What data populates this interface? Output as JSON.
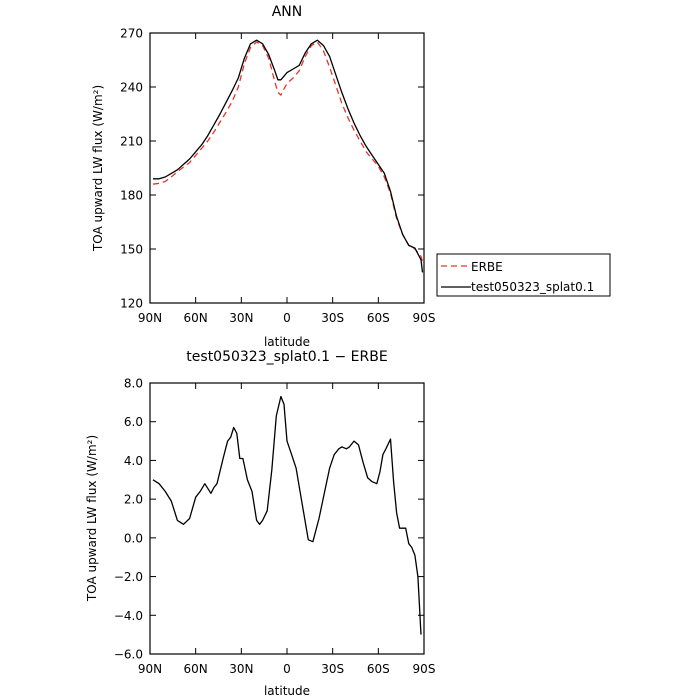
{
  "chart_data": [
    {
      "type": "line",
      "title": "ANN",
      "xlabel": "latitude",
      "ylabel": "TOA upward LW flux (W/m²)",
      "xlim": [
        -90,
        90
      ],
      "ylim": [
        120,
        270
      ],
      "x_ticks": [
        {
          "value": -90,
          "label": "90N"
        },
        {
          "value": -60,
          "label": "60N"
        },
        {
          "value": -30,
          "label": "30N"
        },
        {
          "value": 0,
          "label": "0"
        },
        {
          "value": 30,
          "label": "30S"
        },
        {
          "value": 60,
          "label": "60S"
        },
        {
          "value": 90,
          "label": "90S"
        }
      ],
      "y_ticks": [
        {
          "value": 120,
          "label": "120"
        },
        {
          "value": 150,
          "label": "150"
        },
        {
          "value": 180,
          "label": "180"
        },
        {
          "value": 210,
          "label": "210"
        },
        {
          "value": 240,
          "label": "240"
        },
        {
          "value": 270,
          "label": "270"
        }
      ],
      "legend_position": "right",
      "series": [
        {
          "name": "ERBE",
          "color": "#e8342c",
          "dash": "6,4",
          "x": [
            -88,
            -84,
            -80,
            -76,
            -72,
            -68,
            -64,
            -60,
            -56,
            -52,
            -48,
            -44,
            -40,
            -36,
            -32,
            -28,
            -24,
            -20,
            -16,
            -12,
            -8,
            -6,
            -4,
            -2,
            0,
            4,
            8,
            12,
            16,
            20,
            24,
            28,
            32,
            36,
            40,
            44,
            48,
            52,
            56,
            60,
            64,
            68,
            72,
            76,
            80,
            84,
            88,
            89
          ],
          "values": [
            186,
            186.5,
            187.5,
            190,
            193,
            195.5,
            198,
            202,
            206,
            210,
            215,
            220.5,
            226,
            232,
            240,
            253,
            262,
            265,
            263,
            256,
            243,
            237,
            235.5,
            239,
            242,
            245,
            249,
            257,
            263,
            265,
            260,
            251,
            241,
            231,
            223,
            216,
            210,
            204,
            200,
            196,
            190,
            181,
            167,
            158,
            152,
            150,
            146,
            143
          ]
        },
        {
          "name": "test050323_splat0.1",
          "color": "#000000",
          "dash": "",
          "x": [
            -88,
            -84,
            -80,
            -76,
            -72,
            -68,
            -64,
            -60,
            -56,
            -52,
            -48,
            -44,
            -40,
            -36,
            -32,
            -28,
            -24,
            -20,
            -16,
            -12,
            -8,
            -6,
            -4,
            -2,
            0,
            4,
            8,
            12,
            16,
            20,
            24,
            28,
            32,
            36,
            40,
            44,
            48,
            52,
            56,
            60,
            64,
            68,
            72,
            76,
            80,
            84,
            88,
            89
          ],
          "values": [
            189,
            189,
            190,
            192,
            194,
            197,
            200,
            204,
            208,
            213,
            219,
            225,
            231.5,
            238,
            245,
            256,
            264,
            266,
            264,
            258,
            249,
            244,
            244,
            246,
            248,
            250,
            252,
            259,
            264,
            266,
            263,
            257,
            247,
            237,
            228,
            220,
            213,
            207,
            202,
            197,
            192,
            182,
            168,
            158,
            152,
            150.5,
            144,
            137
          ]
        }
      ]
    },
    {
      "type": "line",
      "title": "test050323_splat0.1 − ERBE",
      "xlabel": "latitude",
      "ylabel": "TOA upward LW flux (W/m²)",
      "xlim": [
        -90,
        90
      ],
      "ylim": [
        -6.0,
        8.0
      ],
      "x_ticks": [
        {
          "value": -90,
          "label": "90N"
        },
        {
          "value": -60,
          "label": "60N"
        },
        {
          "value": -30,
          "label": "30N"
        },
        {
          "value": 0,
          "label": "0"
        },
        {
          "value": 30,
          "label": "30S"
        },
        {
          "value": 60,
          "label": "60S"
        },
        {
          "value": 90,
          "label": "90S"
        }
      ],
      "y_ticks": [
        {
          "value": -6.0,
          "label": "−6.0"
        },
        {
          "value": -4.0,
          "label": "−4.0"
        },
        {
          "value": -2.0,
          "label": "−2.0"
        },
        {
          "value": 0.0,
          "label": "0.0"
        },
        {
          "value": 2.0,
          "label": "2.0"
        },
        {
          "value": 4.0,
          "label": "4.0"
        },
        {
          "value": 6.0,
          "label": "6.0"
        },
        {
          "value": 8.0,
          "label": "8.0"
        }
      ],
      "series": [
        {
          "color": "#000000",
          "x": [
            -88,
            -84,
            -80,
            -76,
            -72,
            -68,
            -64,
            -60,
            -57,
            -54,
            -50,
            -48,
            -46,
            -42,
            -39,
            -37,
            -35,
            -33,
            -31,
            -29,
            -26,
            -23,
            -20,
            -18,
            -16,
            -13,
            -10,
            -7,
            -4,
            -2,
            0,
            3,
            6,
            9,
            14,
            17,
            21,
            25,
            28,
            31,
            34,
            36,
            39,
            41,
            44,
            47,
            50,
            53,
            56,
            59,
            61,
            63,
            65,
            68,
            70,
            72,
            74,
            76,
            78,
            80,
            82,
            84,
            86,
            88
          ],
          "values": [
            3.0,
            2.8,
            2.4,
            1.9,
            0.9,
            0.7,
            1.0,
            2.1,
            2.4,
            2.8,
            2.3,
            2.6,
            2.8,
            4.1,
            5.0,
            5.2,
            5.7,
            5.4,
            4.1,
            4.1,
            3.0,
            2.4,
            0.9,
            0.7,
            0.9,
            1.4,
            3.5,
            6.3,
            7.3,
            6.9,
            5.0,
            4.3,
            3.6,
            2.2,
            -0.1,
            -0.2,
            1.0,
            2.5,
            3.6,
            4.3,
            4.6,
            4.7,
            4.6,
            4.7,
            5.0,
            4.8,
            3.9,
            3.1,
            2.9,
            2.8,
            3.4,
            4.3,
            4.6,
            5.1,
            2.9,
            1.3,
            0.5,
            0.5,
            0.5,
            -0.3,
            -0.5,
            -0.9,
            -2.0,
            -5.0
          ]
        }
      ]
    }
  ]
}
